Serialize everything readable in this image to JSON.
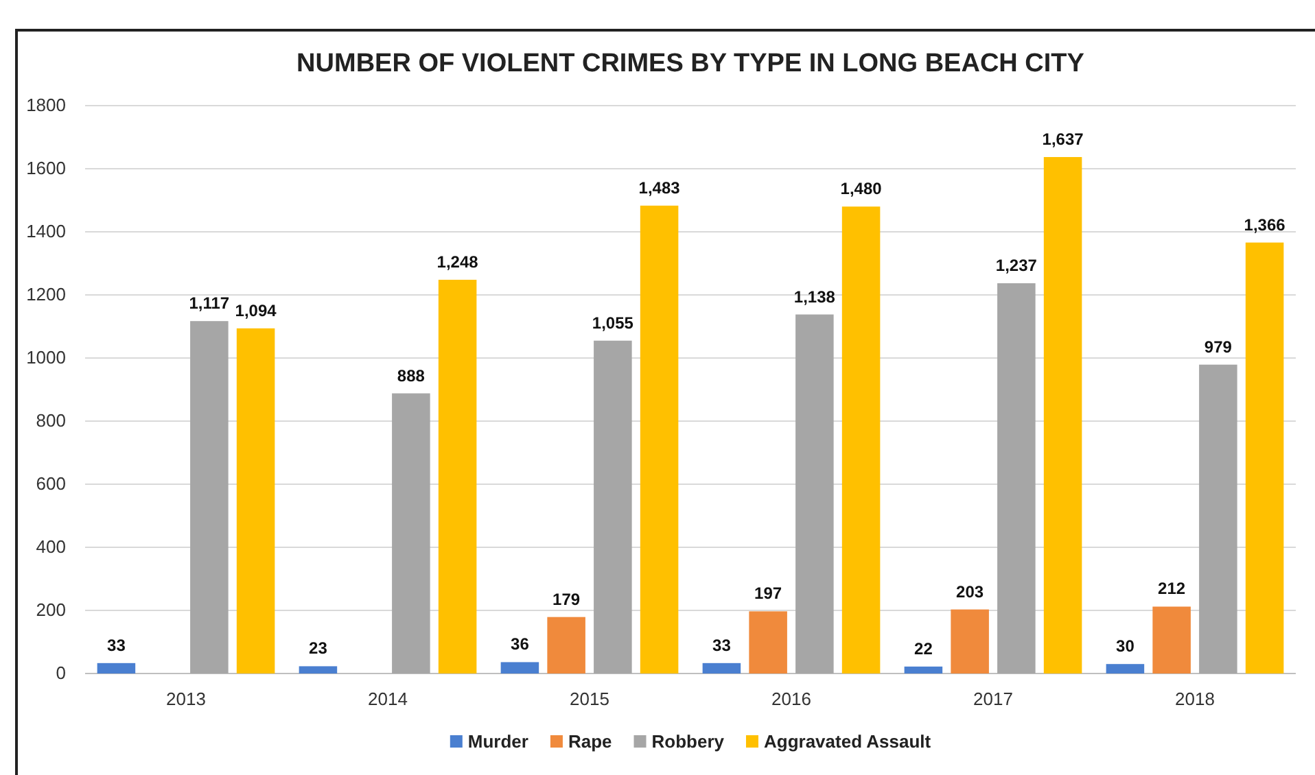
{
  "chart_data": {
    "type": "bar",
    "title": "NUMBER OF VIOLENT CRIMES BY TYPE IN LONG BEACH CITY",
    "categories": [
      "2013",
      "2014",
      "2015",
      "2016",
      "2017",
      "2018"
    ],
    "series": [
      {
        "name": "Murder",
        "color": "#4a7fd0",
        "values": [
          33,
          23,
          36,
          33,
          22,
          30
        ],
        "value_labels": [
          "33",
          "23",
          "36",
          "33",
          "22",
          "30"
        ]
      },
      {
        "name": "Rape",
        "color": "#f08a3c",
        "values": [
          null,
          null,
          179,
          197,
          203,
          212
        ],
        "value_labels": [
          null,
          null,
          "179",
          "197",
          "203",
          "212"
        ]
      },
      {
        "name": "Robbery",
        "color": "#a6a6a6",
        "values": [
          1117,
          888,
          1055,
          1138,
          1237,
          979
        ],
        "value_labels": [
          "1,117",
          "888",
          "1,055",
          "1,138",
          "1,237",
          "979"
        ]
      },
      {
        "name": "Aggravated Assault",
        "color": "#ffc000",
        "values": [
          1094,
          1248,
          1483,
          1480,
          1637,
          1366
        ],
        "value_labels": [
          "1,094",
          "1,248",
          "1,483",
          "1,480",
          "1,637",
          "1,366"
        ]
      }
    ],
    "ylim": [
      0,
      1800
    ],
    "yticks": [
      0,
      200,
      400,
      600,
      800,
      1000,
      1200,
      1400,
      1600,
      1800
    ],
    "grid": "y",
    "legend": "bottom"
  }
}
